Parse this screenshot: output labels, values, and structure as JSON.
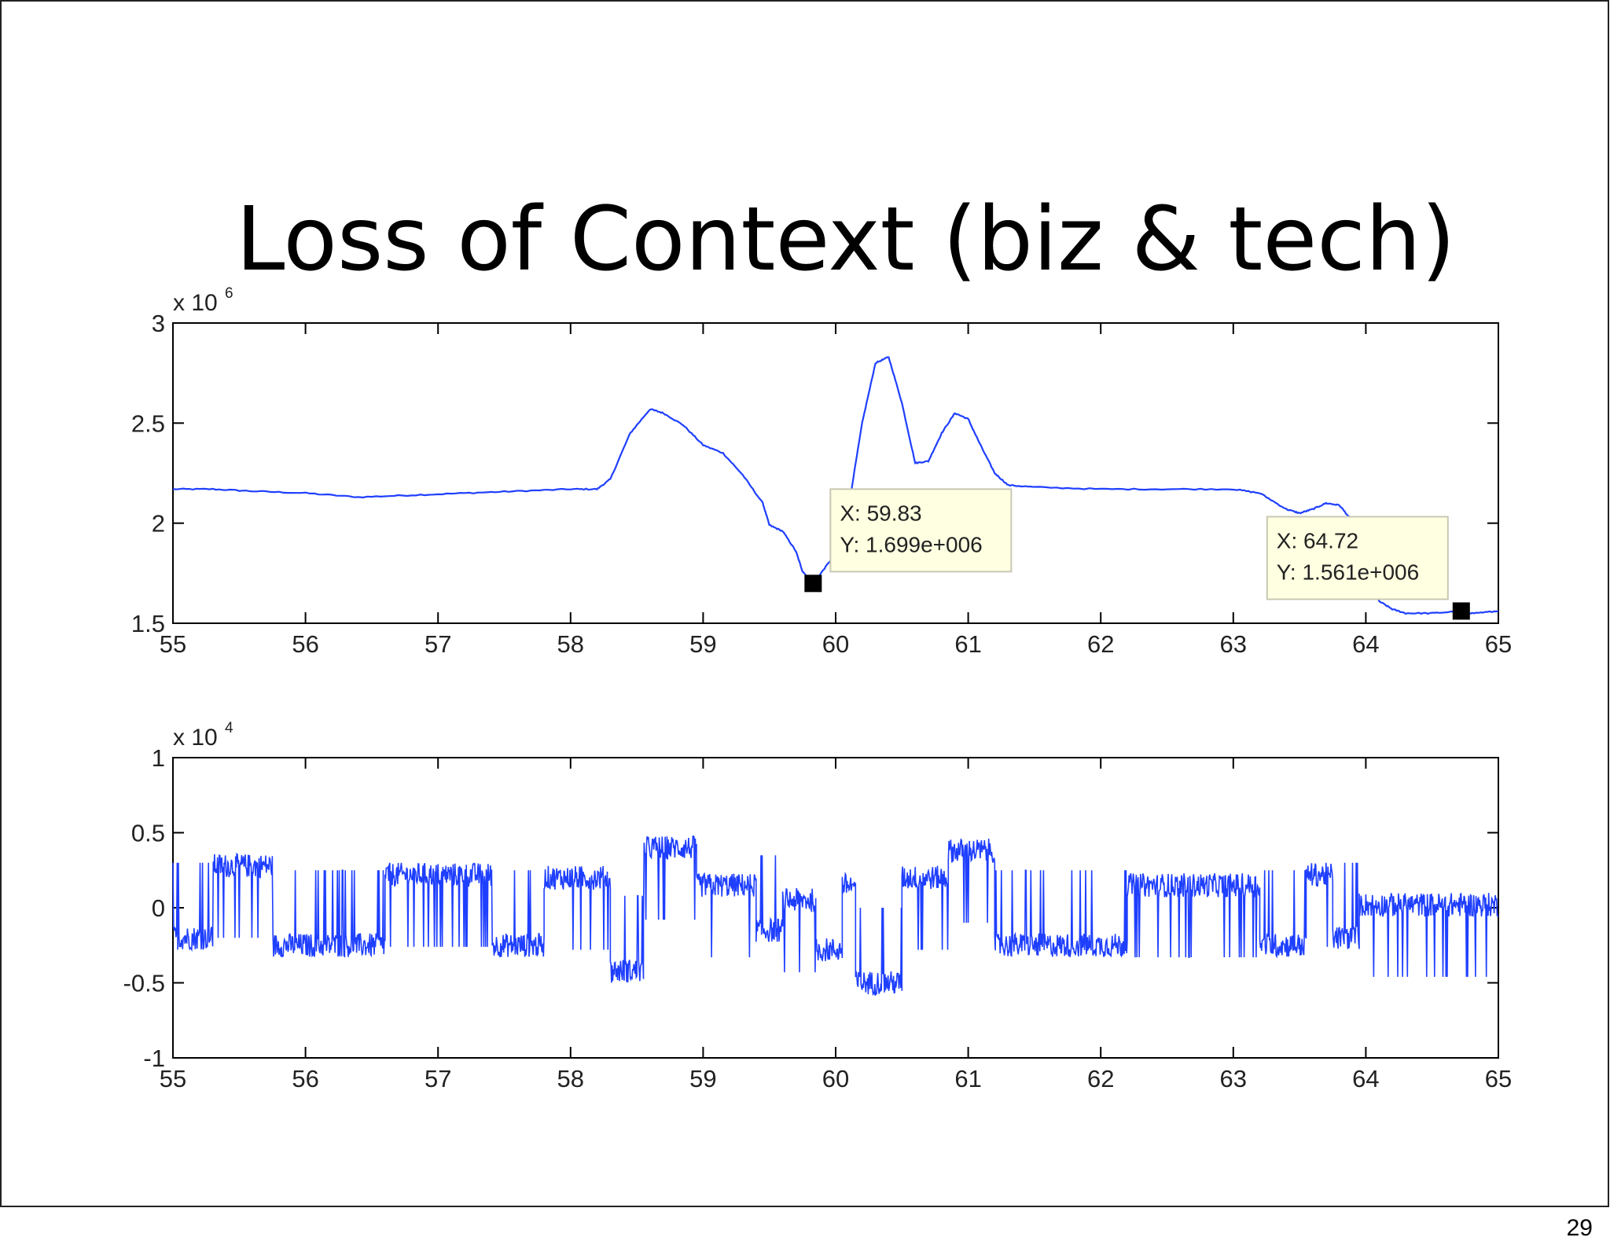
{
  "slide": {
    "title": "Loss of Context (biz & tech)",
    "page_number": "29"
  },
  "colors": {
    "line": "#1f3fff",
    "axis": "#000000",
    "datatip_bg": "#ffffe1",
    "datatip_border": "#c8c8b4",
    "marker": "#000000"
  },
  "chart_data": [
    {
      "type": "line",
      "title": "",
      "xlabel": "",
      "ylabel": "",
      "xlim": [
        55,
        65
      ],
      "ylim": [
        1.5,
        3
      ],
      "y_exponent_label": "x 10",
      "y_exponent_power": "6",
      "x_ticks": [
        55,
        56,
        57,
        58,
        59,
        60,
        61,
        62,
        63,
        64,
        65
      ],
      "x_tick_labels": [
        "55",
        "56",
        "57",
        "58",
        "59",
        "60",
        "61",
        "62",
        "63",
        "64",
        "65"
      ],
      "y_ticks": [
        1.5,
        2,
        2.5,
        3
      ],
      "y_tick_labels": [
        "1.5",
        "2",
        "2.5",
        "3"
      ],
      "grid": false,
      "series": [
        {
          "x": [
            55,
            55.3,
            55.6,
            56,
            56.4,
            56.8,
            57.2,
            57.6,
            58,
            58.2,
            58.3,
            58.45,
            58.6,
            58.7,
            58.85,
            59,
            59.15,
            59.3,
            59.45,
            59.5,
            59.6,
            59.7,
            59.75,
            59.83,
            59.9,
            60,
            60.1,
            60.2,
            60.3,
            60.4,
            60.5,
            60.6,
            60.7,
            60.8,
            60.9,
            61,
            61.1,
            61.2,
            61.3,
            61.5,
            62,
            62.5,
            63,
            63.2,
            63.4,
            63.5,
            63.6,
            63.7,
            63.8,
            63.9,
            64,
            64.1,
            64.2,
            64.3,
            64.5,
            64.72,
            64.8,
            65
          ],
          "y": [
            2.17,
            2.17,
            2.16,
            2.15,
            2.13,
            2.14,
            2.15,
            2.16,
            2.17,
            2.17,
            2.22,
            2.45,
            2.57,
            2.55,
            2.49,
            2.39,
            2.35,
            2.24,
            2.1,
            1.99,
            1.96,
            1.86,
            1.76,
            1.699,
            1.76,
            1.85,
            2.09,
            2.5,
            2.8,
            2.83,
            2.6,
            2.3,
            2.31,
            2.45,
            2.55,
            2.52,
            2.38,
            2.25,
            2.19,
            2.18,
            2.17,
            2.17,
            2.17,
            2.15,
            2.07,
            2.05,
            2.07,
            2.1,
            2.09,
            2.01,
            1.75,
            1.61,
            1.57,
            1.55,
            1.55,
            1.561,
            1.55,
            1.56
          ]
        }
      ],
      "annotations": [
        {
          "x": 59.83,
          "y": 1.699,
          "label_x": "X: 59.83",
          "label_y": "Y: 1.699e+006"
        },
        {
          "x": 64.72,
          "y": 1.561,
          "label_x": "X: 64.72",
          "label_y": "Y: 1.561e+006"
        }
      ]
    },
    {
      "type": "line",
      "title": "",
      "xlabel": "",
      "ylabel": "",
      "xlim": [
        55,
        65
      ],
      "ylim": [
        -1,
        1
      ],
      "y_exponent_label": "x 10",
      "y_exponent_power": "4",
      "x_ticks": [
        55,
        56,
        57,
        58,
        59,
        60,
        61,
        62,
        63,
        64,
        65
      ],
      "x_tick_labels": [
        "55",
        "56",
        "57",
        "58",
        "59",
        "60",
        "61",
        "62",
        "63",
        "64",
        "65"
      ],
      "y_ticks": [
        -1,
        -0.5,
        0,
        0.5,
        1
      ],
      "y_tick_labels": [
        "-1",
        "-0.5",
        "0",
        "0.5",
        "1"
      ],
      "grid": false,
      "series": [
        {
          "description_free": true,
          "segments": [
            {
              "x0": 55.0,
              "x1": 55.3,
              "level": -0.2
            },
            {
              "x0": 55.3,
              "x1": 55.75,
              "level": 0.28
            },
            {
              "x0": 55.75,
              "x1": 56.6,
              "level": -0.25
            },
            {
              "x0": 56.6,
              "x1": 57.4,
              "level": 0.22
            },
            {
              "x0": 57.4,
              "x1": 57.8,
              "level": -0.25
            },
            {
              "x0": 57.8,
              "x1": 58.3,
              "level": 0.2
            },
            {
              "x0": 58.3,
              "x1": 58.55,
              "level": -0.42
            },
            {
              "x0": 58.55,
              "x1": 58.95,
              "level": 0.4
            },
            {
              "x0": 58.95,
              "x1": 59.4,
              "level": 0.15
            },
            {
              "x0": 59.4,
              "x1": 59.6,
              "level": -0.15
            },
            {
              "x0": 59.6,
              "x1": 59.85,
              "level": 0.05
            },
            {
              "x0": 59.85,
              "x1": 60.05,
              "level": -0.28
            },
            {
              "x0": 60.05,
              "x1": 60.15,
              "level": 0.15
            },
            {
              "x0": 60.15,
              "x1": 60.5,
              "level": -0.5
            },
            {
              "x0": 60.5,
              "x1": 60.85,
              "level": 0.2
            },
            {
              "x0": 60.85,
              "x1": 61.2,
              "level": 0.38
            },
            {
              "x0": 61.2,
              "x1": 62.2,
              "level": -0.25
            },
            {
              "x0": 62.2,
              "x1": 63.2,
              "level": 0.15
            },
            {
              "x0": 63.2,
              "x1": 63.55,
              "level": -0.25
            },
            {
              "x0": 63.55,
              "x1": 63.75,
              "level": 0.22
            },
            {
              "x0": 63.75,
              "x1": 63.95,
              "level": -0.2
            },
            {
              "x0": 63.95,
              "x1": 65.0,
              "level": 0.02
            }
          ]
        }
      ]
    }
  ]
}
